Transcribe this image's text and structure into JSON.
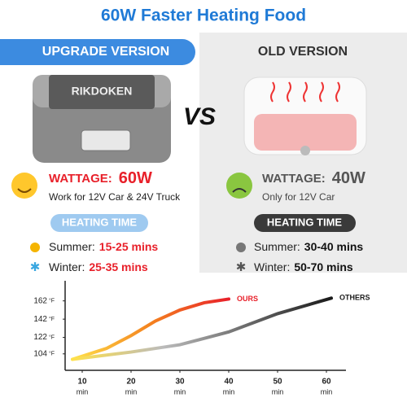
{
  "header": {
    "title": "60W Faster Heating Food",
    "left_banner": "UPGRADE VERSION",
    "right_banner": "OLD VERSION",
    "brand": "RIKDOKEN",
    "vs": "VS"
  },
  "left": {
    "wattage_label": "WATTAGE:",
    "wattage_value": "60W",
    "wattage_note": "Work for 12V Car & 24V Truck",
    "heating_title": "HEATING TIME",
    "summer_label": "Summer:",
    "summer_value": "15-25 mins",
    "winter_label": "Winter:",
    "winter_value": "25-35 mins"
  },
  "right": {
    "wattage_label": "WATTAGE:",
    "wattage_value": "40W",
    "wattage_note": "Only for 12V Car",
    "heating_title": "HEATING TIME",
    "summer_label": "Summer:",
    "summer_value": "30-40 mins",
    "winter_label": "Winter:",
    "winter_value": "50-70 mins"
  },
  "chart": {
    "type": "line",
    "y_unit": "°F",
    "x_unit": "min",
    "xlim": [
      6.5,
      64
    ],
    "ylim": [
      86,
      184
    ],
    "xticks": [
      10,
      20,
      30,
      40,
      50,
      60
    ],
    "yticks": [
      104,
      122,
      142,
      162
    ],
    "series": [
      {
        "name": "OURS",
        "color": "#e8202a",
        "x": [
          8,
          15,
          20,
          25,
          30,
          35,
          40
        ],
        "values": [
          98,
          110,
          124,
          140,
          152,
          160,
          164
        ]
      },
      {
        "name": "OTHERS",
        "color": "#1a1a1a",
        "x": [
          8,
          20,
          30,
          40,
          50,
          61
        ],
        "values": [
          98,
          106,
          114,
          128,
          148,
          165
        ]
      }
    ]
  }
}
